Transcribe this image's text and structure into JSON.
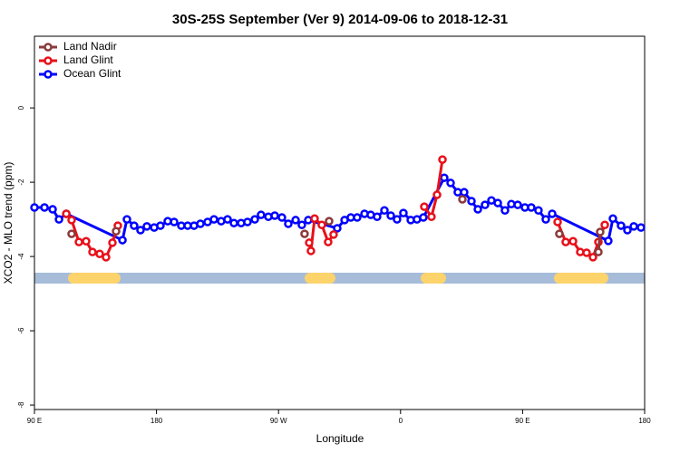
{
  "chart_data": {
    "type": "line",
    "title": "30S-25S September (Ver 9)   2014-09-06 to 2018-12-31",
    "x_label": "Longitude",
    "y_label": "XCO2 - MLO trend (ppm)",
    "xlim": [
      90,
      540
    ],
    "ylim": [
      -8.12,
      1.93
    ],
    "xticks": [
      {
        "value": 90,
        "label": "90 E"
      },
      180,
      {
        "value": 270,
        "label": "90 W"
      },
      {
        "value": 360,
        "label": "0"
      },
      {
        "value": 450,
        "label": "90 E"
      },
      {
        "value": 540,
        "label": "180"
      }
    ],
    "yticks": [
      0,
      -2,
      -4,
      -6,
      -8
    ],
    "legend": "top-left",
    "series": [
      {
        "name": "Land Nadir",
        "color": "#8b3a3a",
        "x": [
          117.4,
          null,
          150.2,
          null,
          289.2,
          null,
          307.3,
          null,
          405.6,
          null,
          477.1,
          null,
          505.9,
          507.2
        ],
        "values": [
          -3.39,
          null,
          -3.32,
          null,
          -3.39,
          null,
          -3.05,
          null,
          -2.46,
          null,
          -3.39,
          null,
          -3.88,
          -3.34
        ]
      },
      {
        "name": "Land Glint",
        "color": "#e8101a",
        "x": [
          113.5,
          117.4,
          122.8,
          128.1,
          132.8,
          138.1,
          142.8,
          147.5,
          151.5,
          null,
          292.6,
          293.9,
          296.6,
          301.9,
          306.6,
          310.6,
          null,
          377.5,
          382.8,
          386.9,
          390.9,
          null,
          475.8,
          481.8,
          487.2,
          492.5,
          497.2,
          501.9,
          505.9,
          510.6
        ],
        "values": [
          -2.85,
          -3.02,
          -3.61,
          -3.59,
          -3.88,
          -3.93,
          -4.02,
          -3.63,
          -3.17,
          null,
          -3.63,
          -3.85,
          -2.98,
          -3.15,
          -3.61,
          -3.41,
          null,
          -2.66,
          -2.93,
          -2.34,
          -1.39,
          null,
          -3.07,
          -3.61,
          -3.59,
          -3.88,
          -3.9,
          -4.02,
          -3.61,
          -3.15
        ]
      },
      {
        "name": "Ocean Glint",
        "color": "#0000ff",
        "x": [
          90,
          97.4,
          103.4,
          108.1,
          113.5,
          154.9,
          158.2,
          163.5,
          168.2,
          172.9,
          178.3,
          182.9,
          188.3,
          193,
          198.3,
          203,
          207.7,
          212.4,
          217.7,
          222.4,
          227.7,
          232.4,
          237.1,
          242.4,
          247.1,
          252.5,
          257.1,
          262.5,
          267.2,
          272.5,
          277.2,
          282.6,
          287.2,
          291.9,
          313.3,
          318.7,
          323.3,
          328,
          333.4,
          338,
          342.7,
          348.1,
          352.8,
          357.4,
          362.1,
          367.5,
          372.1,
          376.8,
          392.2,
          396.9,
          402.2,
          406.9,
          412.3,
          417,
          422.3,
          427,
          431.7,
          437,
          441.7,
          446.4,
          451.7,
          456.4,
          461.7,
          467.1,
          471.8,
          513.2,
          516.6,
          522.6,
          527.3,
          532,
          537.3
        ],
        "values": [
          -2.68,
          -2.68,
          -2.73,
          -3.0,
          -2.85,
          -3.56,
          -3.0,
          -3.17,
          -3.29,
          -3.19,
          -3.22,
          -3.17,
          -3.05,
          -3.07,
          -3.17,
          -3.17,
          -3.17,
          -3.12,
          -3.07,
          -3.0,
          -3.05,
          -3.0,
          -3.1,
          -3.1,
          -3.07,
          -3.0,
          -2.88,
          -2.93,
          -2.9,
          -2.95,
          -3.12,
          -3.02,
          -3.15,
          -3.02,
          -3.24,
          -3.02,
          -2.95,
          -2.95,
          -2.85,
          -2.88,
          -2.93,
          -2.76,
          -2.9,
          -3.0,
          -2.83,
          -3.02,
          -3.0,
          -2.95,
          -1.88,
          -2.02,
          -2.27,
          -2.27,
          -2.51,
          -2.73,
          -2.61,
          -2.49,
          -2.56,
          -2.76,
          -2.59,
          -2.61,
          -2.68,
          -2.68,
          -2.76,
          -3.0,
          -2.85,
          -3.58,
          -2.98,
          -3.17,
          -3.29,
          -3.19,
          -3.22
        ]
      }
    ]
  }
}
